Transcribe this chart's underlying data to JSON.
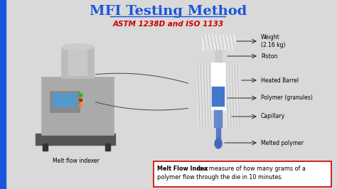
{
  "title": "MFI Testing Method",
  "subtitle": "ASTM 1238D and ISO 1133",
  "title_color": "#1a56db",
  "subtitle_color": "#cc0000",
  "bg_color": "#d9d9d9",
  "left_border_color": "#1a56db",
  "melt_flow_label": "Melt flow indexer",
  "definition_bold": "Melt Flow Index",
  "definition_rest": " is a measure of how many grams of a\npolymer flow through the die in 10 minutes.",
  "labels": {
    "weight": "Weight\n(2.16 kg)",
    "piston": "Piston",
    "heated_barrel": "Heated Barrel",
    "polymer": "Polymer (granules)",
    "capillary": "Capillary",
    "melted": "Melted polymer"
  },
  "box_color": "#cc0000",
  "text_color": "#000000"
}
